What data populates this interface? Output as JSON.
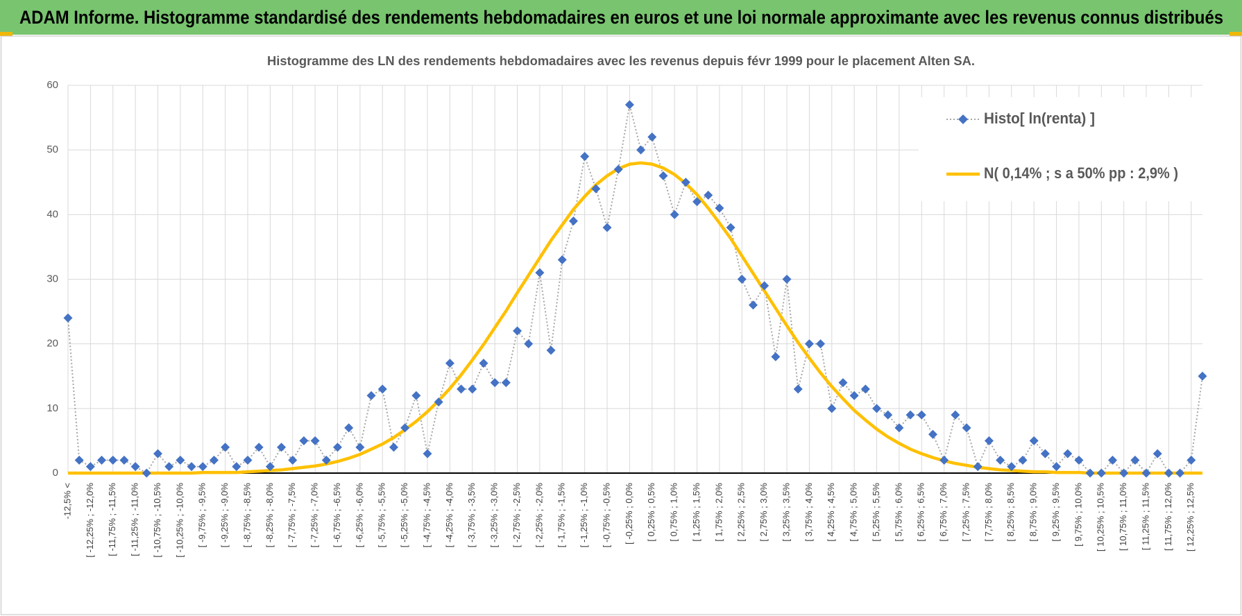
{
  "header": {
    "title": "ADAM Informe. Histogramme standardisé des rendements hebdomadaires en euros et une loi normale approximante avec les revenus connus distribués"
  },
  "chart_data": {
    "type": "line",
    "title": "Histogramme des LN des rendements hebdomadaires avec les revenus depuis févr 1999 pour le placement Alten SA.",
    "categories": [
      "-12,5% <",
      null,
      "[ -12,25% ; -12,0%",
      null,
      "[ -11,75% ; -11,5%",
      null,
      "[ -11,25% ; -11,0%",
      null,
      "[ -10,75% ; -10,5%",
      null,
      "[ -10,25% ; -10,0%",
      null,
      "[ -9,75% ; -9,5%",
      null,
      "[ -9,25% ; -9,0%",
      null,
      "[ -8,75% ; -8,5%",
      null,
      "[ -8,25% ; -8,0%",
      null,
      "[ -7,75% ; -7,5%",
      null,
      "[ -7,25% ; -7,0%",
      null,
      "[ -6,75% ; -6,5%",
      null,
      "[ -6,25% ; -6,0%",
      null,
      "[ -5,75% ; -5,5%",
      null,
      "[ -5,25% ; -5,0%",
      null,
      "[ -4,75% ; -4,5%",
      null,
      "[ -4,25% ; -4,0%",
      null,
      "[ -3,75% ; -3,5%",
      null,
      "[ -3,25% ; -3,0%",
      null,
      "[ -2,75% ; -2,5%",
      null,
      "[ -2,25% ; -2,0%",
      null,
      "[ -1,75% ; -1,5%",
      null,
      "[ -1,25% ; -1,0%",
      null,
      "[ -0,75% ; -0,5%",
      null,
      "[ -0,25% ; 0,0%",
      null,
      "[ 0,25% ; 0,5%",
      null,
      "[ 0,75% ; 1,0%",
      null,
      "[ 1,25% ; 1,5%",
      null,
      "[ 1,75% ; 2,0%",
      null,
      "[ 2,25% ; 2,5%",
      null,
      "[ 2,75% ; 3,0%",
      null,
      "[ 3,25% ; 3,5%",
      null,
      "[ 3,75% ; 4,0%",
      null,
      "[ 4,25% ; 4,5%",
      null,
      "[ 4,75% ; 5,0%",
      null,
      "[ 5,25% ; 5,5%",
      null,
      "[ 5,75% ; 6,0%",
      null,
      "[ 6,25% ; 6,5%",
      null,
      "[ 6,75% ; 7,0%",
      null,
      "[ 7,25% ; 7,5%",
      null,
      "[ 7,75% ; 8,0%",
      null,
      "[ 8,25% ; 8,5%",
      null,
      "[ 8,75% ; 9,0%",
      null,
      "[ 9,25% ; 9,5%",
      null,
      "[ 9,75% ; 10,0%",
      null,
      "[ 10,25% ; 10,5%",
      null,
      "[ 10,75% ; 11,0%",
      null,
      "[ 11,25% ; 11,5%",
      null,
      "[ 11,75% ; 12,0%",
      null,
      "[ 12,25% ; 12,5%",
      null
    ],
    "series": [
      {
        "name": "Histo[ ln(renta) ]",
        "color": "#4472c4",
        "values": [
          24,
          2,
          1,
          2,
          2,
          2,
          1,
          0,
          3,
          1,
          2,
          1,
          1,
          2,
          4,
          1,
          2,
          4,
          1,
          4,
          2,
          5,
          5,
          2,
          4,
          7,
          4,
          12,
          13,
          4,
          7,
          12,
          3,
          11,
          17,
          13,
          13,
          17,
          14,
          14,
          22,
          20,
          31,
          19,
          33,
          39,
          49,
          44,
          38,
          47,
          57,
          50,
          52,
          46,
          40,
          45,
          42,
          43,
          41,
          38,
          30,
          26,
          29,
          18,
          30,
          13,
          20,
          20,
          10,
          14,
          12,
          13,
          10,
          9,
          7,
          9,
          9,
          6,
          2,
          9,
          7,
          1,
          5,
          2,
          1,
          2,
          5,
          3,
          1,
          3,
          2,
          0,
          0,
          2,
          0,
          2,
          0,
          3,
          0,
          0,
          2,
          15
        ]
      },
      {
        "name": "N( 0,14% ; s a 50% pp : 2,9% )",
        "color": "#ffc000",
        "values": [
          0,
          0,
          0,
          0,
          0,
          0,
          0,
          0,
          0,
          0,
          0,
          0,
          0.1,
          0.1,
          0.1,
          0.1,
          0.2,
          0.3,
          0.4,
          0.5,
          0.7,
          0.9,
          1.1,
          1.4,
          1.8,
          2.3,
          2.9,
          3.7,
          4.5,
          5.5,
          6.7,
          8.0,
          9.5,
          11.2,
          13.1,
          15.2,
          17.5,
          19.9,
          22.5,
          25.1,
          27.9,
          30.6,
          33.3,
          36.0,
          38.4,
          40.8,
          42.8,
          44.6,
          46.0,
          47.1,
          47.8,
          48.0,
          47.8,
          47.2,
          46.2,
          44.8,
          43.1,
          41.0,
          38.7,
          36.3,
          33.6,
          30.9,
          28.2,
          25.5,
          22.8,
          20.2,
          17.8,
          15.5,
          13.4,
          11.5,
          9.7,
          8.2,
          6.8,
          5.6,
          4.6,
          3.7,
          3.0,
          2.4,
          1.9,
          1.5,
          1.2,
          0.9,
          0.7,
          0.5,
          0.4,
          0.3,
          0.2,
          0.2,
          0.1,
          0.1,
          0.1,
          0,
          0,
          0,
          0,
          0,
          0,
          0,
          0,
          0,
          0,
          0
        ]
      }
    ],
    "ylim": [
      0,
      60
    ],
    "yticks": [
      0,
      10,
      20,
      30,
      40,
      50,
      60
    ],
    "grid": true,
    "legend": "top-right"
  }
}
